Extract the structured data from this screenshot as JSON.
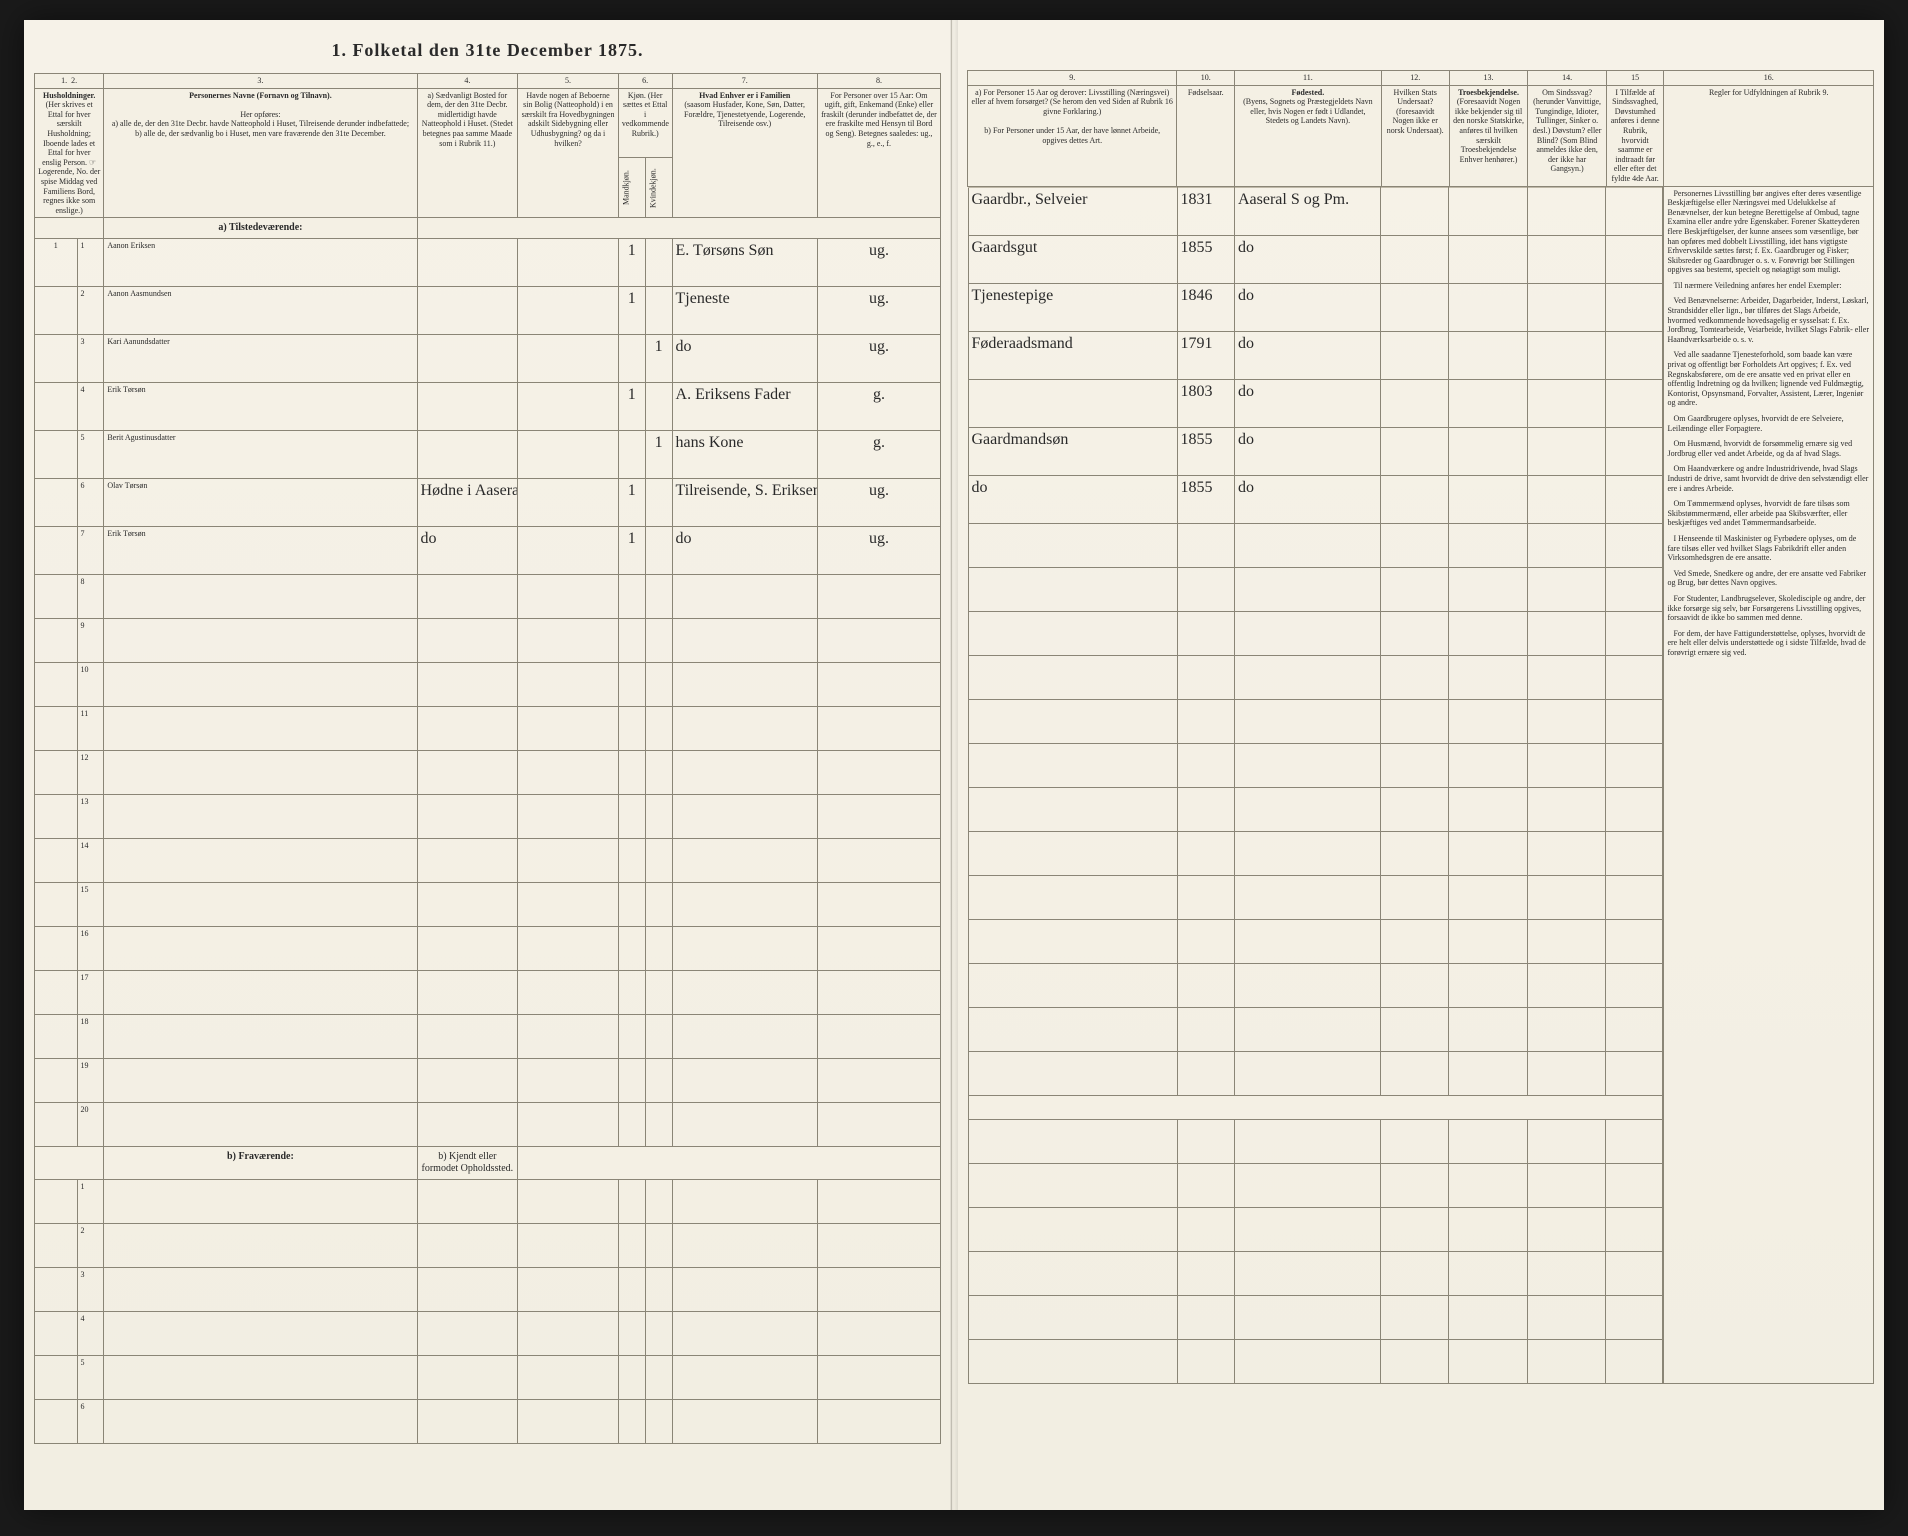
{
  "title": "1.  Folketal den 31te December 1875.",
  "colors": {
    "paper": "#f4f0e6",
    "ink": "#2a2a2a",
    "rule": "#8a8576",
    "faint_rule": "#bfb9a8",
    "handwriting": "#3a352c",
    "background": "#1a1a1a"
  },
  "left_columns": {
    "nums": [
      "1.",
      "2.",
      "3.",
      "4.",
      "5.",
      "6.",
      "7.",
      "8."
    ],
    "h1": "Husholdninger.",
    "h1b": "(Her skrives et Ettal for hver særskilt Husholdning; Iboende lades et Ettal for hver enslig Person. ☞ Logerende, No. der spise Middag ved Familiens Bord, regnes ikke som enslige.)",
    "h3": "Personernes Navne (Fornavn og Tilnavn).",
    "h3b": "Her opføres:",
    "h3c": "a) alle de, der den 31te Decbr. havde Natteophold i Huset, Tilreisende derunder indbefattede;",
    "h3d": "b) alle de, der sædvanlig bo i Huset, men vare fraværende den 31te December.",
    "h4": "a) Sædvanligt Bosted for dem, der den 31te Decbr. midlertidigt havde Natteophold i Huset. (Stedet betegnes paa samme Maade som i Rubrik 11.)",
    "h5": "Havde nogen af Beboerne sin Bolig (Natteophold) i en særskilt fra Hovedbygningen adskilt Sidebygning eller Udhusbygning? og da i hvilken?",
    "h6": "Kjøn. (Her sættes et Ettal i vedkommende Rubrik.)",
    "h6a": "Mandkjøn.",
    "h6b": "Kvindekjøn.",
    "h7": "Hvad Enhver er i Familien",
    "h7b": "(saasom Husfader, Kone, Søn, Datter, Forældre, Tjenestetyende, Logerende, Tilreisende osv.)",
    "h8": "For Personer over 15 Aar: Om ugift, gift, Enkemand (Enke) eller fraskilt (derunder indbefattet de, der ere fraskilte med Hensyn til Bord og Seng). Betegnes saaledes: ug., g., e., f."
  },
  "right_columns": {
    "nums": [
      "9.",
      "10.",
      "11.",
      "12.",
      "13.",
      "14.",
      "15",
      "16."
    ],
    "h9a": "a) For Personer 15 Aar og derover: Livsstilling (Næringsvei) eller af hvem forsørget? (Se herom den ved Siden af Rubrik 16 givne Forklaring.)",
    "h9b": "b) For Personer under 15 Aar, der have lønnet Arbeide, opgives dettes Art.",
    "h10": "Fødselsaar.",
    "h11": "Fødested.",
    "h11b": "(Byens, Sognets og Præstegjeldets Navn eller, hvis Nogen er født i Udlandet, Stedets og Landets Navn).",
    "h12": "Hvilken Stats Undersaat?",
    "h12b": "(foresaavidt Nogen ikke er norsk Undersaat).",
    "h13": "Troesbekjendelse.",
    "h13b": "(Foresaavidt Nogen ikke bekjender sig til den norske Statskirke, anføres til hvilken særskilt Troesbekjendelse Enhver henhører.)",
    "h14": "Om Sindssvag? (herunder Vanvittige, Tungindige, Idioter, Tullinger, Sinker o. desl.) Døvstum? eller Blind? (Som Blind anmeldes ikke den, der ikke har Gangsyn.)",
    "h15": "I Tilfælde af Sindssvaghed, Døvstumhed anføres i denne Rubrik, hvorvidt saamme er indtraadt før eller efter det fyldte 4de Aar.",
    "h16": "Regler for Udfyldningen af Rubrik 9."
  },
  "section_a": "a) Tilstedeværende:",
  "section_b": "b) Fraværende:",
  "section_b_col4": "b) Kjendt eller formodet Opholdssted.",
  "households": [
    "1"
  ],
  "rows": [
    {
      "n": "1",
      "name": "Aanon Eriksen",
      "col4": "",
      "col5": "",
      "m": "1",
      "k": "",
      "rel": "E. Tørsøns Søn",
      "civ": "ug.",
      "occ": "Gaardbr., Selveier",
      "yr": "1831",
      "born": "Aaseral S og Pm."
    },
    {
      "n": "2",
      "name": "Aanon Aasmundsen",
      "col4": "",
      "col5": "",
      "m": "1",
      "k": "",
      "rel": "Tjeneste",
      "civ": "ug.",
      "occ": "Gaardsgut",
      "yr": "1855",
      "born": "do"
    },
    {
      "n": "3",
      "name": "Kari Aanundsdatter",
      "col4": "",
      "col5": "",
      "m": "",
      "k": "1",
      "rel": "do",
      "civ": "ug.",
      "occ": "Tjenestepige",
      "yr": "1846",
      "born": "do"
    },
    {
      "n": "4",
      "name": "Erik Tørsøn",
      "col4": "",
      "col5": "",
      "m": "1",
      "k": "",
      "rel": "A. Eriksens Fader",
      "civ": "g.",
      "occ": "Føderaadsmand",
      "yr": "1791",
      "born": "do"
    },
    {
      "n": "5",
      "name": "Berit Agustinusdatter",
      "col4": "",
      "col5": "",
      "m": "",
      "k": "1",
      "rel": "hans Kone",
      "civ": "g.",
      "occ": "",
      "yr": "1803",
      "born": "do"
    },
    {
      "n": "6",
      "name": "Olav Tørsøn",
      "col4": "Hødne i Aaseral",
      "col5": "",
      "m": "1",
      "k": "",
      "rel": "Tilreisende, S. Eriksens Brodersøn",
      "civ": "ug.",
      "occ": "Gaardmandsøn",
      "yr": "1855",
      "born": "do"
    },
    {
      "n": "7",
      "name": "Erik Tørsøn",
      "col4": "do",
      "col5": "",
      "m": "1",
      "k": "",
      "rel": "do",
      "civ": "ug.",
      "occ": "do",
      "yr": "1855",
      "born": "do"
    }
  ],
  "empty_rows_a": [
    "8",
    "9",
    "10",
    "11",
    "12",
    "13",
    "14",
    "15",
    "16",
    "17",
    "18",
    "19",
    "20"
  ],
  "empty_rows_b": [
    "1",
    "2",
    "3",
    "4",
    "5",
    "6"
  ],
  "side_heading": "Personernes Livsstilling bør angives efter deres væsentlige Beskjæftigelse eller Næringsvei med Udelukkelse af Benævnelser, der kun betegne Berettigelse af Ombud, tagne Examina eller andre ydre Egenskaber. Forener Skatteyderen flere Beskjæftigelser, der kunne ansees som væsentlige, bør han opføres med dobbelt Livsstilling, idet hans vigtigste Erhvervskilde sættes først; f. Ex. Gaardbruger og Fisker; Skibsreder og Gaardbruger o. s. v. Forøvrigt bør Stillingen opgives saa bestemt, specielt og nøiagtigt som muligt.",
  "side_p": [
    "Til nærmere Veiledning anføres her endel Exempler:",
    "Ved Benævnelserne: Arbeider, Dagarbeider, Inderst, Løskarl, Strandsidder eller lign., bør tilføres det Slags Arbeide, hvormed vedkommende hovedsagelig er sysselsat: f. Ex. Jordbrug, Tomtearbeide, Veiarbeide, hvilket Slags Fabrik- eller Haandværksarbeide o. s. v.",
    "Ved alle saadanne Tjenesteforhold, som baade kan være privat og offentligt bør Forholdets Art opgives; f. Ex. ved Regnskabsførere, om de ere ansatte ved en privat eller en offentlig Indretning og da hvilken; lignende ved Fuldmægtig, Kontorist, Opsynsmand, Forvalter, Assistent, Lærer, Ingeniør og andre.",
    "Om Gaardbrugere oplyses, hvorvidt de ere Selveiere, Leilændinge eller Forpagtere.",
    "Om Husmænd, hvorvidt de forsømmelig ernære sig ved Jordbrug eller ved andet Arbeide, og da af hvad Slags.",
    "Om Haandværkere og andre Industridrivende, hvad Slags Industri de drive, samt hvorvidt de drive den selvstændigt eller ere i andres Arbeide.",
    "Om Tømmermænd oplyses, hvorvidt de fare tilsøs som Skibstømmermænd, eller arbeide paa Skibsværfter, eller beskjæftiges ved andet Tømmermandsarbeide.",
    "I Henseende til Maskinister og Fyrbødere oplyses, om de fare tilsøs eller ved hvilket Slags Fabrikdrift eller anden Virksomhedsgren de ere ansatte.",
    "Ved Smede, Snedkere og andre, der ere ansatte ved Fabriker og Brug, bør dettes Navn opgives.",
    "For Studenter, Landbrugselever, Skoledisciple og andre, der ikke forsørge sig selv, bør Forsørgerens Livsstilling opgives, forsaavidt de ikke bo sammen med denne.",
    "For dem, der have Fattigunderstøttelse, oplyses, hvorvidt de ere helt eller delvis understøttede og i sidste Tilfælde, hvad de forøvrigt ernære sig ved."
  ]
}
